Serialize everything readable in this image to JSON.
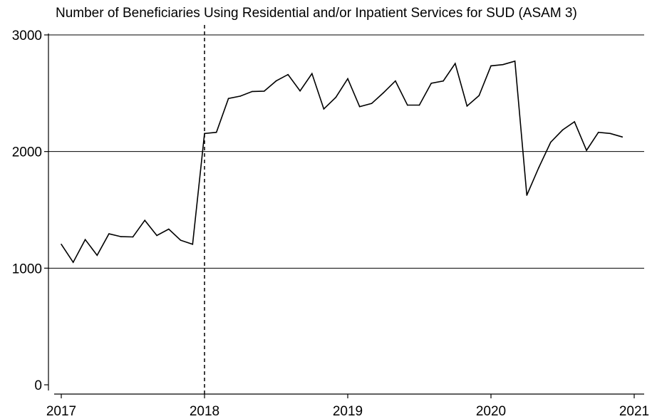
{
  "chart_data": {
    "type": "line",
    "title": "Number of Beneficiaries Using Residential and/or Inpatient Services for SUD (ASAM 3)",
    "xlabel": "",
    "ylabel": "",
    "xlim": [
      2017,
      2021
    ],
    "ylim": [
      0,
      3000
    ],
    "x_ticks": [
      2017,
      2018,
      2019,
      2020,
      2021
    ],
    "y_ticks": [
      0,
      1000,
      2000,
      3000
    ],
    "x_tick_labels": [
      "2017",
      "2018",
      "2019",
      "2020",
      "2021"
    ],
    "y_tick_labels": [
      "0",
      "1000",
      "2000",
      "3000"
    ],
    "grid": "horizontal",
    "legend": "none",
    "reference_line": {
      "x": 2018,
      "style": "dashed"
    },
    "series": [
      {
        "x": [
          2017.0,
          2017.083,
          2017.167,
          2017.25,
          2017.333,
          2017.417,
          2017.5,
          2017.583,
          2017.667,
          2017.75,
          2017.833,
          2017.917,
          2018.0,
          2018.083,
          2018.167,
          2018.25,
          2018.333,
          2018.417,
          2018.5,
          2018.583,
          2018.667,
          2018.75,
          2018.833,
          2018.917,
          2019.0,
          2019.083,
          2019.167,
          2019.25,
          2019.333,
          2019.417,
          2019.5,
          2019.583,
          2019.667,
          2019.75,
          2019.833,
          2019.917,
          2020.0,
          2020.083,
          2020.167,
          2020.25,
          2020.333,
          2020.417,
          2020.5,
          2020.583,
          2020.667,
          2020.75,
          2020.833,
          2020.917
        ],
        "values": [
          1205,
          1050,
          1245,
          1110,
          1295,
          1270,
          1268,
          1410,
          1280,
          1335,
          1240,
          1205,
          2155,
          2165,
          2455,
          2475,
          2515,
          2518,
          2605,
          2660,
          2520,
          2668,
          2365,
          2465,
          2625,
          2385,
          2412,
          2505,
          2605,
          2398,
          2398,
          2585,
          2605,
          2755,
          2390,
          2480,
          2735,
          2745,
          2775,
          1625,
          1860,
          2080,
          2185,
          2255,
          2010,
          2165,
          2155,
          2125
        ],
        "color": "#000000"
      }
    ]
  }
}
